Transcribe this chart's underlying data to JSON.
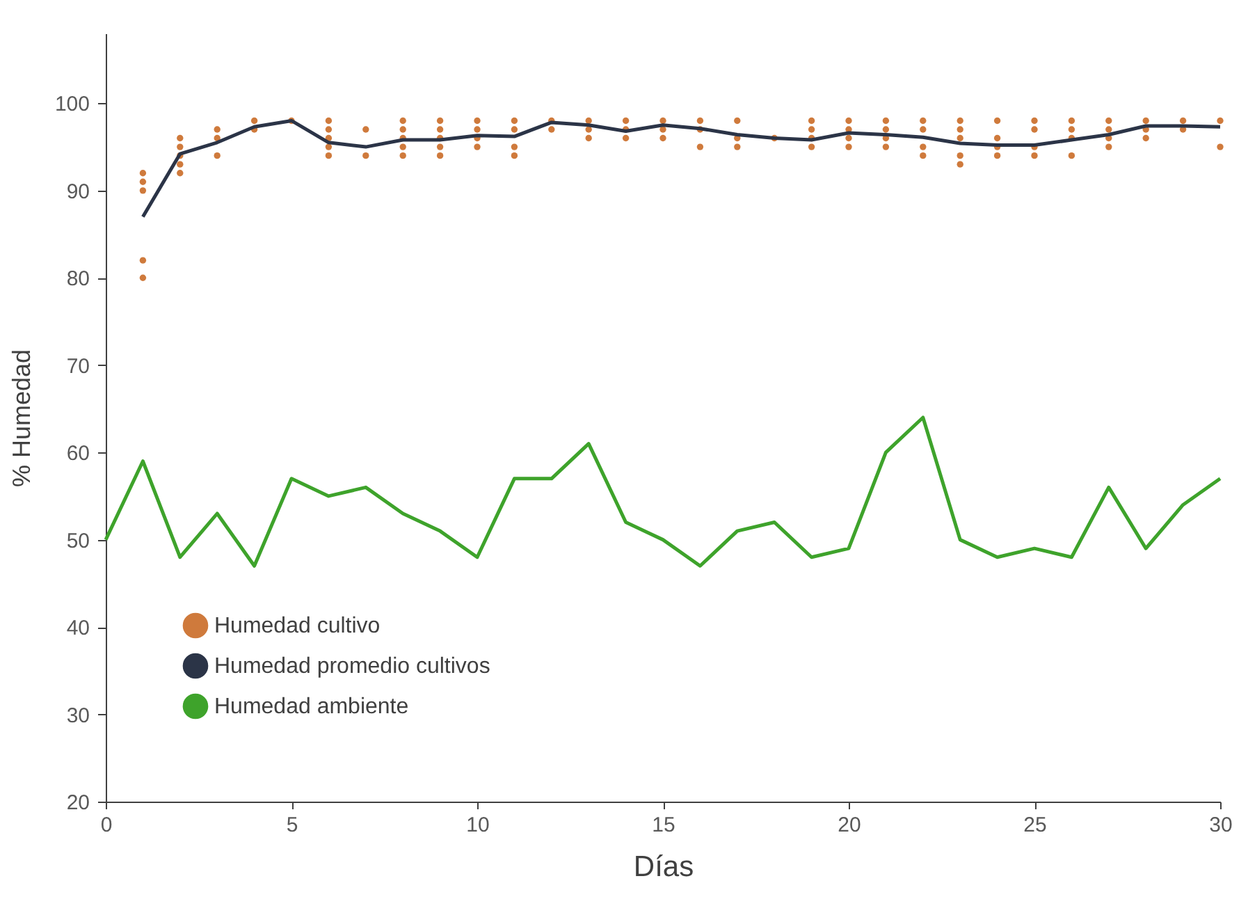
{
  "chart_data": {
    "type": "line",
    "xlabel": "Días",
    "ylabel": "% Humedad",
    "xlim": [
      0,
      30
    ],
    "xticks": [
      0,
      5,
      10,
      15,
      20,
      25,
      30
    ],
    "ylim": [
      20,
      108
    ],
    "yticks": [
      20,
      30,
      40,
      50,
      60,
      70,
      80,
      90,
      100
    ],
    "grid": false,
    "legend": "bottom left",
    "series": [
      {
        "name": "Humedad cultivo",
        "type": "scatter",
        "marker": "circle",
        "color": "#cf7a3c",
        "x": [
          1,
          1,
          1,
          1,
          1,
          2,
          2,
          2,
          2,
          2,
          3,
          3,
          3,
          4,
          4,
          5,
          6,
          6,
          6,
          6,
          6,
          7,
          7,
          8,
          8,
          8,
          8,
          8,
          9,
          9,
          9,
          9,
          9,
          10,
          10,
          10,
          10,
          11,
          11,
          11,
          11,
          12,
          12,
          13,
          13,
          13,
          14,
          14,
          14,
          15,
          15,
          15,
          16,
          16,
          16,
          17,
          17,
          17,
          18,
          19,
          19,
          19,
          19,
          20,
          20,
          20,
          20,
          21,
          21,
          21,
          21,
          22,
          22,
          22,
          22,
          23,
          23,
          23,
          23,
          23,
          24,
          24,
          24,
          24,
          25,
          25,
          25,
          25,
          26,
          26,
          26,
          26,
          27,
          27,
          27,
          27,
          28,
          28,
          28,
          29,
          29,
          30,
          30
        ],
        "values": [
          92,
          91,
          90,
          82,
          80,
          96,
          95,
          94,
          93,
          92,
          97,
          96,
          94,
          98,
          97,
          98,
          98,
          97,
          96,
          95,
          94,
          97,
          94,
          98,
          97,
          96,
          95,
          94,
          98,
          97,
          96,
          95,
          94,
          98,
          97,
          96,
          95,
          98,
          97,
          95,
          94,
          98,
          97,
          98,
          97,
          96,
          98,
          97,
          96,
          98,
          97,
          96,
          98,
          97,
          95,
          98,
          96,
          95,
          96,
          98,
          97,
          96,
          95,
          98,
          97,
          96,
          95,
          98,
          97,
          96,
          95,
          98,
          97,
          95,
          94,
          98,
          97,
          96,
          94,
          93,
          98,
          96,
          95,
          94,
          98,
          97,
          95,
          94,
          98,
          97,
          96,
          94,
          98,
          97,
          96,
          95,
          98,
          97,
          96,
          98,
          97,
          98,
          95
        ]
      },
      {
        "name": "Humedad promedio cultivos",
        "type": "line",
        "marker": "none",
        "color": "#2b3447",
        "x": [
          1,
          2,
          3,
          4,
          5,
          6,
          7,
          8,
          9,
          10,
          11,
          12,
          13,
          14,
          15,
          16,
          17,
          18,
          19,
          20,
          21,
          22,
          23,
          24,
          25,
          26,
          27,
          28,
          29,
          30
        ],
        "values": [
          87,
          94.2,
          95.5,
          97.3,
          98,
          95.5,
          95,
          95.8,
          95.8,
          96.3,
          96.2,
          97.8,
          97.5,
          96.8,
          97.5,
          97.1,
          96.4,
          96,
          95.8,
          96.6,
          96.4,
          96.1,
          95.4,
          95.2,
          95.2,
          95.8,
          96.4,
          97.4,
          97.4,
          97.3
        ]
      },
      {
        "name": "Humedad ambiente",
        "type": "line",
        "marker": "none",
        "color": "#3ea32b",
        "x": [
          0,
          1,
          2,
          3,
          4,
          5,
          6,
          7,
          8,
          9,
          10,
          11,
          12,
          13,
          14,
          15,
          16,
          17,
          18,
          19,
          20,
          21,
          22,
          23,
          24,
          25,
          26,
          27,
          28,
          29,
          30
        ],
        "values": [
          50,
          59,
          48,
          53,
          47,
          57,
          55,
          56,
          53,
          51,
          48,
          57,
          57,
          61,
          52,
          50,
          47,
          51,
          52,
          48,
          49,
          60,
          64,
          50,
          48,
          49,
          48,
          56,
          49,
          54,
          57
        ]
      }
    ]
  }
}
